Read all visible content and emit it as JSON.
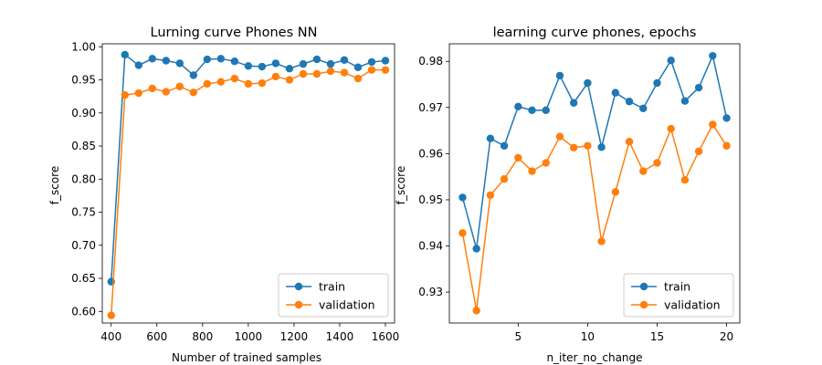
{
  "chart_data": [
    {
      "type": "line",
      "title": "Lurning curve Phones NN",
      "xlabel": "Number of trained samples",
      "ylabel": "f_score",
      "xlim": [
        361,
        1640
      ],
      "ylim": [
        0.5825,
        1.0045
      ],
      "xticks": [
        400,
        600,
        800,
        1000,
        1200,
        1400,
        1600
      ],
      "xtick_labels": [
        "400",
        "600",
        "800",
        "1000",
        "1200",
        "1400",
        "1600"
      ],
      "yticks": [
        0.6,
        0.65,
        0.7,
        0.75,
        0.8,
        0.85,
        0.9,
        0.95,
        1.0
      ],
      "ytick_labels": [
        "0.60",
        "0.65",
        "0.70",
        "0.75",
        "0.80",
        "0.85",
        "0.90",
        "0.95",
        "1.00"
      ],
      "grid": false,
      "legend": "lower-right",
      "x": [
        400,
        460,
        520,
        580,
        640,
        700,
        760,
        820,
        880,
        940,
        1000,
        1060,
        1120,
        1180,
        1240,
        1300,
        1360,
        1420,
        1480,
        1540,
        1600
      ],
      "series": [
        {
          "name": "train",
          "color": "#1f77b4",
          "values": [
            0.645,
            0.988,
            0.972,
            0.982,
            0.979,
            0.975,
            0.957,
            0.981,
            0.982,
            0.978,
            0.971,
            0.97,
            0.975,
            0.967,
            0.974,
            0.981,
            0.974,
            0.98,
            0.969,
            0.977,
            0.979
          ]
        },
        {
          "name": "validation",
          "color": "#ff7f0e",
          "values": [
            0.594,
            0.927,
            0.93,
            0.937,
            0.932,
            0.94,
            0.931,
            0.944,
            0.947,
            0.952,
            0.944,
            0.945,
            0.955,
            0.95,
            0.959,
            0.959,
            0.963,
            0.961,
            0.952,
            0.965,
            0.965
          ]
        }
      ]
    },
    {
      "type": "line",
      "title": "learning curve phones, epochs",
      "xlabel": "n_iter_no_change",
      "ylabel": "f_score",
      "xlim": [
        0.05,
        20.95
      ],
      "ylim": [
        0.9233,
        0.9838
      ],
      "xticks": [
        5,
        10,
        15,
        20
      ],
      "xtick_labels": [
        "5",
        "10",
        "15",
        "20"
      ],
      "yticks": [
        0.93,
        0.94,
        0.95,
        0.96,
        0.97,
        0.98
      ],
      "ytick_labels": [
        "0.93",
        "0.94",
        "0.95",
        "0.96",
        "0.97",
        "0.98"
      ],
      "grid": false,
      "legend": "lower-right",
      "x": [
        1,
        2,
        3,
        4,
        5,
        6,
        7,
        8,
        9,
        10,
        11,
        12,
        13,
        14,
        15,
        16,
        17,
        18,
        19,
        20
      ],
      "series": [
        {
          "name": "train",
          "color": "#1f77b4",
          "values": [
            0.9505,
            0.9394,
            0.9633,
            0.9617,
            0.9702,
            0.9694,
            0.9694,
            0.9769,
            0.971,
            0.9753,
            0.9614,
            0.9732,
            0.9713,
            0.9698,
            0.9753,
            0.9802,
            0.9714,
            0.9743,
            0.9812,
            0.9677
          ]
        },
        {
          "name": "validation",
          "color": "#ff7f0e",
          "values": [
            0.9428,
            0.926,
            0.951,
            0.9545,
            0.9591,
            0.9562,
            0.958,
            0.9637,
            0.9613,
            0.9617,
            0.941,
            0.9517,
            0.9626,
            0.9562,
            0.958,
            0.9654,
            0.9543,
            0.9605,
            0.9663,
            0.9617
          ]
        }
      ]
    }
  ]
}
